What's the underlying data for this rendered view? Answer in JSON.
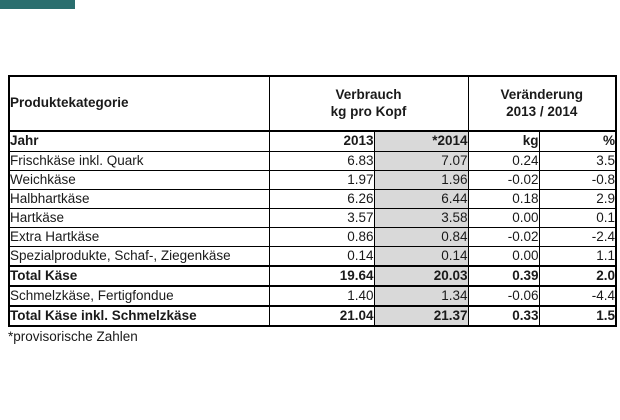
{
  "accent_bar": {
    "color": "#2a6e6e"
  },
  "colors": {
    "accent": "#2a6e6e",
    "grid": "#000000",
    "text": "#1a1a1a",
    "col_2014_bg": "#d9d9d9"
  },
  "table": {
    "header": {
      "category": "Produktekategorie",
      "verbrauch_line1": "Verbrauch",
      "verbrauch_line2": "kg pro Kopf",
      "veraenderung_line1": "Veränderung",
      "veraenderung_line2": "2013 / 2014"
    },
    "subheader": {
      "label": "Jahr",
      "y2013": "2013",
      "y2014": "*2014",
      "kg": "kg",
      "pct": "%"
    },
    "rows": [
      {
        "label": "Frischkäse inkl. Quark",
        "y2013": "6.83",
        "y2014": "7.07",
        "kg": "0.24",
        "pct": "3.5",
        "bold": false
      },
      {
        "label": "Weichkäse",
        "y2013": "1.97",
        "y2014": "1.96",
        "kg": "-0.02",
        "pct": "-0.8",
        "bold": false
      },
      {
        "label": "Halbhartkäse",
        "y2013": "6.26",
        "y2014": "6.44",
        "kg": "0.18",
        "pct": "2.9",
        "bold": false
      },
      {
        "label": "Hartkäse",
        "y2013": "3.57",
        "y2014": "3.58",
        "kg": "0.00",
        "pct": "0.1",
        "bold": false
      },
      {
        "label": "Extra Hartkäse",
        "y2013": "0.86",
        "y2014": "0.84",
        "kg": "-0.02",
        "pct": "-2.4",
        "bold": false
      },
      {
        "label": "Spezialprodukte, Schaf-, Ziegenkäse",
        "y2013": "0.14",
        "y2014": "0.14",
        "kg": "0.00",
        "pct": "1.1",
        "bold": false
      },
      {
        "label": "Total Käse",
        "y2013": "19.64",
        "y2014": "20.03",
        "kg": "0.39",
        "pct": "2.0",
        "bold": true
      },
      {
        "label": "Schmelzkäse, Fertigfondue",
        "y2013": "1.40",
        "y2014": "1.34",
        "kg": "-0.06",
        "pct": "-4.4",
        "bold": false
      },
      {
        "label": "Total Käse inkl. Schmelzkäse",
        "y2013": "21.04",
        "y2014": "21.37",
        "kg": "0.33",
        "pct": "1.5",
        "bold": true
      }
    ],
    "footnote": "*provisorische Zahlen"
  },
  "chart_data": {
    "type": "table",
    "title": "",
    "columns": [
      "Produktekategorie",
      "Verbrauch kg pro Kopf 2013",
      "Verbrauch kg pro Kopf *2014",
      "Veränderung 2013 / 2014 kg",
      "Veränderung 2013 / 2014 %"
    ],
    "rows": [
      [
        "Frischkäse inkl. Quark",
        6.83,
        7.07,
        0.24,
        3.5
      ],
      [
        "Weichkäse",
        1.97,
        1.96,
        -0.02,
        -0.8
      ],
      [
        "Halbhartkäse",
        6.26,
        6.44,
        0.18,
        2.9
      ],
      [
        "Hartkäse",
        3.57,
        3.58,
        0.0,
        0.1
      ],
      [
        "Extra Hartkäse",
        0.86,
        0.84,
        -0.02,
        -2.4
      ],
      [
        "Spezialprodukte, Schaf-, Ziegenkäse",
        0.14,
        0.14,
        0.0,
        1.1
      ],
      [
        "Total Käse",
        19.64,
        20.03,
        0.39,
        2.0
      ],
      [
        "Schmelzkäse, Fertigfondue",
        1.4,
        1.34,
        -0.06,
        -4.4
      ],
      [
        "Total Käse inkl. Schmelzkäse",
        21.04,
        21.37,
        0.33,
        1.5
      ]
    ],
    "footnote": "*provisorische Zahlen",
    "notes": "Column *2014 is provisional and shaded gray; 'Total' rows are bold with heavy rule lines."
  }
}
